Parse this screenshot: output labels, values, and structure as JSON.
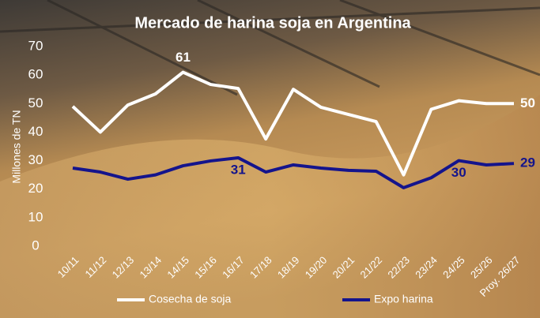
{
  "chart_data": {
    "type": "line",
    "title": "Mercado de harina soja en Argentina",
    "y_label": "Millones de TN",
    "categories": [
      "10/11",
      "11/12",
      "12/13",
      "13/14",
      "14/15",
      "15/16",
      "16/17",
      "17/18",
      "18/19",
      "19/20",
      "20/21",
      "21/22",
      "22/23",
      "23/24",
      "24/25",
      "25/26",
      "Proy. 26/27"
    ],
    "series": [
      {
        "name": "Cosecha de soja",
        "color": "#ffffff",
        "label_points": [
          4,
          16
        ],
        "values": [
          49,
          40,
          49.5,
          53.4,
          61,
          56.7,
          55.3,
          37.6,
          55,
          48.7,
          46.2,
          43.7,
          25,
          48,
          51,
          50,
          50
        ]
      },
      {
        "name": "Expo harina",
        "color": "#14148c",
        "label_points": [
          6,
          14,
          16
        ],
        "values": [
          27.4,
          26,
          23.5,
          25,
          28.2,
          29.9,
          31,
          26,
          28.5,
          27.4,
          26.6,
          26.3,
          20.5,
          24,
          30,
          28.5,
          29
        ]
      }
    ],
    "ylim": [
      0,
      70
    ],
    "yticks": [
      0,
      10,
      20,
      30,
      40,
      50,
      60,
      70
    ],
    "grid": false
  }
}
